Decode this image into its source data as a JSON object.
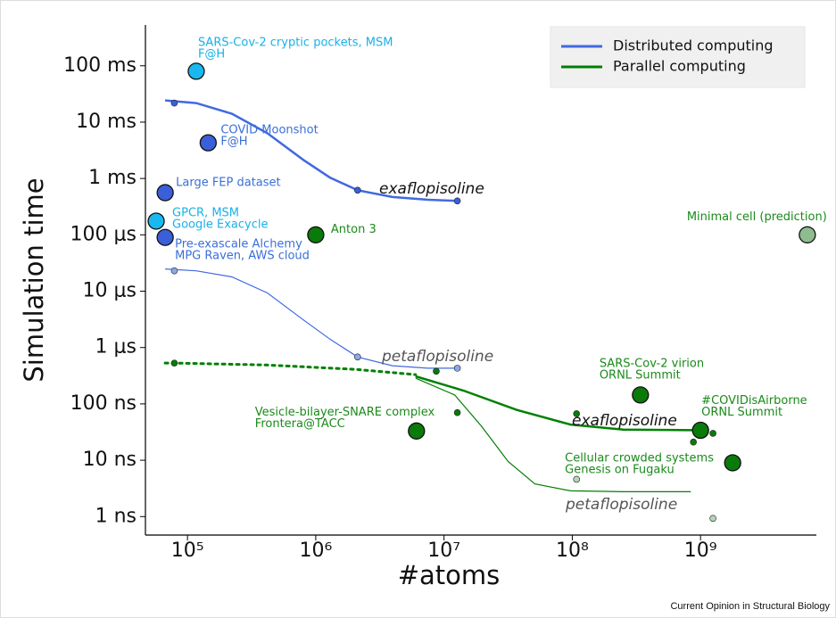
{
  "chart_data": {
    "type": "scatter",
    "xlabel": "#atoms",
    "ylabel": "Simulation time",
    "source": "Current Opinion in Structural Biology",
    "log_x": true,
    "log_y": true,
    "xlim": [
      47000,
      8000000000
    ],
    "ylim": [
      4.7e-10,
      0.53
    ],
    "xticks": [
      {
        "value": 100000,
        "label": "10⁵"
      },
      {
        "value": 1000000,
        "label": "10⁶"
      },
      {
        "value": 10000000,
        "label": "10⁷"
      },
      {
        "value": 100000000,
        "label": "10⁸"
      },
      {
        "value": 1000000000,
        "label": "10⁹"
      }
    ],
    "yticks": [
      {
        "value": 0.1,
        "label": "100 ms"
      },
      {
        "value": 0.01,
        "label": "10 ms"
      },
      {
        "value": 0.001,
        "label": "1 ms"
      },
      {
        "value": 0.0001,
        "label": "100 μs"
      },
      {
        "value": 1e-05,
        "label": "10 μs"
      },
      {
        "value": 1e-06,
        "label": "1 μs"
      },
      {
        "value": 1e-07,
        "label": "100 ns"
      },
      {
        "value": 1e-08,
        "label": "10 ns"
      },
      {
        "value": 1e-09,
        "label": "1 ns"
      }
    ],
    "legend": "upper right",
    "series": [
      {
        "name": "Distributed computing",
        "color": "#4169e1",
        "width": 2.5,
        "dash": false,
        "x": [
          67000,
          117000,
          222000,
          420000,
          800000,
          1290000,
          2120000,
          3950000,
          7500000,
          12700000
        ],
        "values": [
          0.0243,
          0.0218,
          0.0141,
          0.00635,
          0.00214,
          0.00104,
          0.00062,
          0.00047,
          0.00042,
          0.0004
        ]
      },
      {
        "color": "#4169e1",
        "width": 1.2,
        "dash": false,
        "x": [
          67000,
          117000,
          222000,
          420000,
          800000,
          1290000,
          2120000,
          3950000,
          7500000,
          12700000
        ],
        "values": [
          2.48e-05,
          2.3e-05,
          1.79e-05,
          9.3e-06,
          3.1e-06,
          1.41e-06,
          6.8e-07,
          4.75e-07,
          4.3e-07,
          4.3e-07
        ]
      },
      {
        "color": "#008000",
        "width": 3,
        "dash": true,
        "x": [
          67000,
          79000,
          420000,
          2050000,
          6000000
        ],
        "values": [
          5.3e-07,
          5.3e-07,
          4.9e-07,
          4.1e-07,
          3.3e-07
        ]
      },
      {
        "name": "Parallel computing",
        "color": "#008000",
        "width": 2.5,
        "dash": false,
        "x": [
          6000000,
          14200000,
          37000000,
          97000000,
          250000000,
          1070000000
        ],
        "values": [
          3.08e-07,
          1.72e-07,
          7.8e-08,
          4.3e-08,
          3.5e-08,
          3.4e-08
        ]
      },
      {
        "color": "#008000",
        "width": 1.2,
        "dash": false,
        "x": [
          6000000,
          12100000,
          19600000,
          31600000,
          51000000,
          97000000,
          250000000,
          840000000
        ],
        "values": [
          2.86e-07,
          1.44e-07,
          4e-08,
          9.5e-09,
          3.8e-09,
          2.86e-09,
          2.76e-09,
          2.76e-09
        ]
      }
    ],
    "points": [
      {
        "x": 117000,
        "y": 0.08,
        "color": "#1ab8f0",
        "size": 9,
        "label_color": "#1ab0e8",
        "label": [
          "SARS-Cov-2 cryptic pockets, MSM",
          "F@H"
        ]
      },
      {
        "x": 145000,
        "y": 0.0043,
        "color": "#3a5fd9",
        "size": 9,
        "label_color": "#3a6fd8",
        "label": [
          "COVID Moonshot",
          "F@H"
        ]
      },
      {
        "x": 67000,
        "y": 0.00056,
        "color": "#3a5fd9",
        "size": 9,
        "label_color": "#3a6fd8",
        "label": [
          "Large FEP dataset"
        ]
      },
      {
        "x": 57000,
        "y": 0.000175,
        "color": "#1ab8f0",
        "size": 9,
        "label_color": "#1ab0e8",
        "label": [
          "GPCR, MSM",
          "Google Exacycle"
        ]
      },
      {
        "x": 67000,
        "y": 9e-05,
        "color": "#3a5fd9",
        "size": 9,
        "label_color": "#3a6fd8",
        "label": [
          "Pre-exascale Alchemy",
          "MPG Raven, AWS cloud"
        ]
      },
      {
        "x": 1000000,
        "y": 0.0001,
        "color": "#0a7a0a",
        "size": 9,
        "label_color": "#1a8a1a",
        "label": [
          "Anton 3"
        ]
      },
      {
        "x": 6800000000,
        "y": 0.0001,
        "color": "#8fbc8f",
        "size": 9,
        "label_color": "#1a8a1a",
        "label": [
          "Minimal cell (prediction)"
        ]
      },
      {
        "x": 340000000,
        "y": 1.44e-07,
        "color": "#0a7a0a",
        "size": 9,
        "label_color": "#1a8a1a",
        "label": [
          "SARS-Cov-2 virion",
          "ORNL Summit"
        ]
      },
      {
        "x": 6100000,
        "y": 3.3e-08,
        "color": "#0a7a0a",
        "size": 9,
        "label_color": "#1a8a1a",
        "label": [
          "Vesicle-bilayer-SNARE complex",
          "Frontera@TACC"
        ]
      },
      {
        "x": 1000000000,
        "y": 3.4e-08,
        "color": "#0a7a0a",
        "size": 9,
        "label_color": "#1a8a1a",
        "label": [
          "#COVIDisAirborne",
          "ORNL Summit"
        ]
      },
      {
        "x": 1780000000,
        "y": 9e-09,
        "color": "#0a7a0a",
        "size": 9,
        "label_color": "#1a8a1a",
        "label": [
          "Cellular crowded systems",
          "Genesis on Fugaku"
        ]
      }
    ],
    "markers": [
      {
        "x": 79000,
        "y": 0.0218,
        "color": "#3a5fd9"
      },
      {
        "x": 2120000,
        "y": 0.00062,
        "color": "#3a5fd9"
      },
      {
        "x": 12700000,
        "y": 0.0004,
        "color": "#3a5fd9"
      },
      {
        "x": 79000,
        "y": 2.3e-05,
        "color": "#8aa8ea"
      },
      {
        "x": 2120000,
        "y": 6.8e-07,
        "color": "#8aa8ea"
      },
      {
        "x": 12700000,
        "y": 4.3e-07,
        "color": "#8aa8ea"
      },
      {
        "x": 79000,
        "y": 5.3e-07,
        "color": "#0a7a0a"
      },
      {
        "x": 8700000,
        "y": 3.8e-07,
        "color": "#0a7a0a"
      },
      {
        "x": 12700000,
        "y": 7e-08,
        "color": "#0a7a0a"
      },
      {
        "x": 108000000,
        "y": 6.7e-08,
        "color": "#0a7a0a"
      },
      {
        "x": 880000000,
        "y": 2.1e-08,
        "color": "#0a7a0a"
      },
      {
        "x": 1250000000,
        "y": 3e-08,
        "color": "#0a7a0a"
      },
      {
        "x": 108000000,
        "y": 4.6e-09,
        "color": "#b5d6b5"
      },
      {
        "x": 1250000000,
        "y": 9.3e-10,
        "color": "#b5d6b5"
      }
    ],
    "annotations": [
      {
        "text": "exaflopisoline",
        "color": "#111111"
      },
      {
        "text": "petaflopisoline",
        "color": "#555555"
      },
      {
        "text": "exaflopisoline",
        "color": "#111111"
      },
      {
        "text": "petaflopisoline",
        "color": "#555555"
      }
    ]
  }
}
